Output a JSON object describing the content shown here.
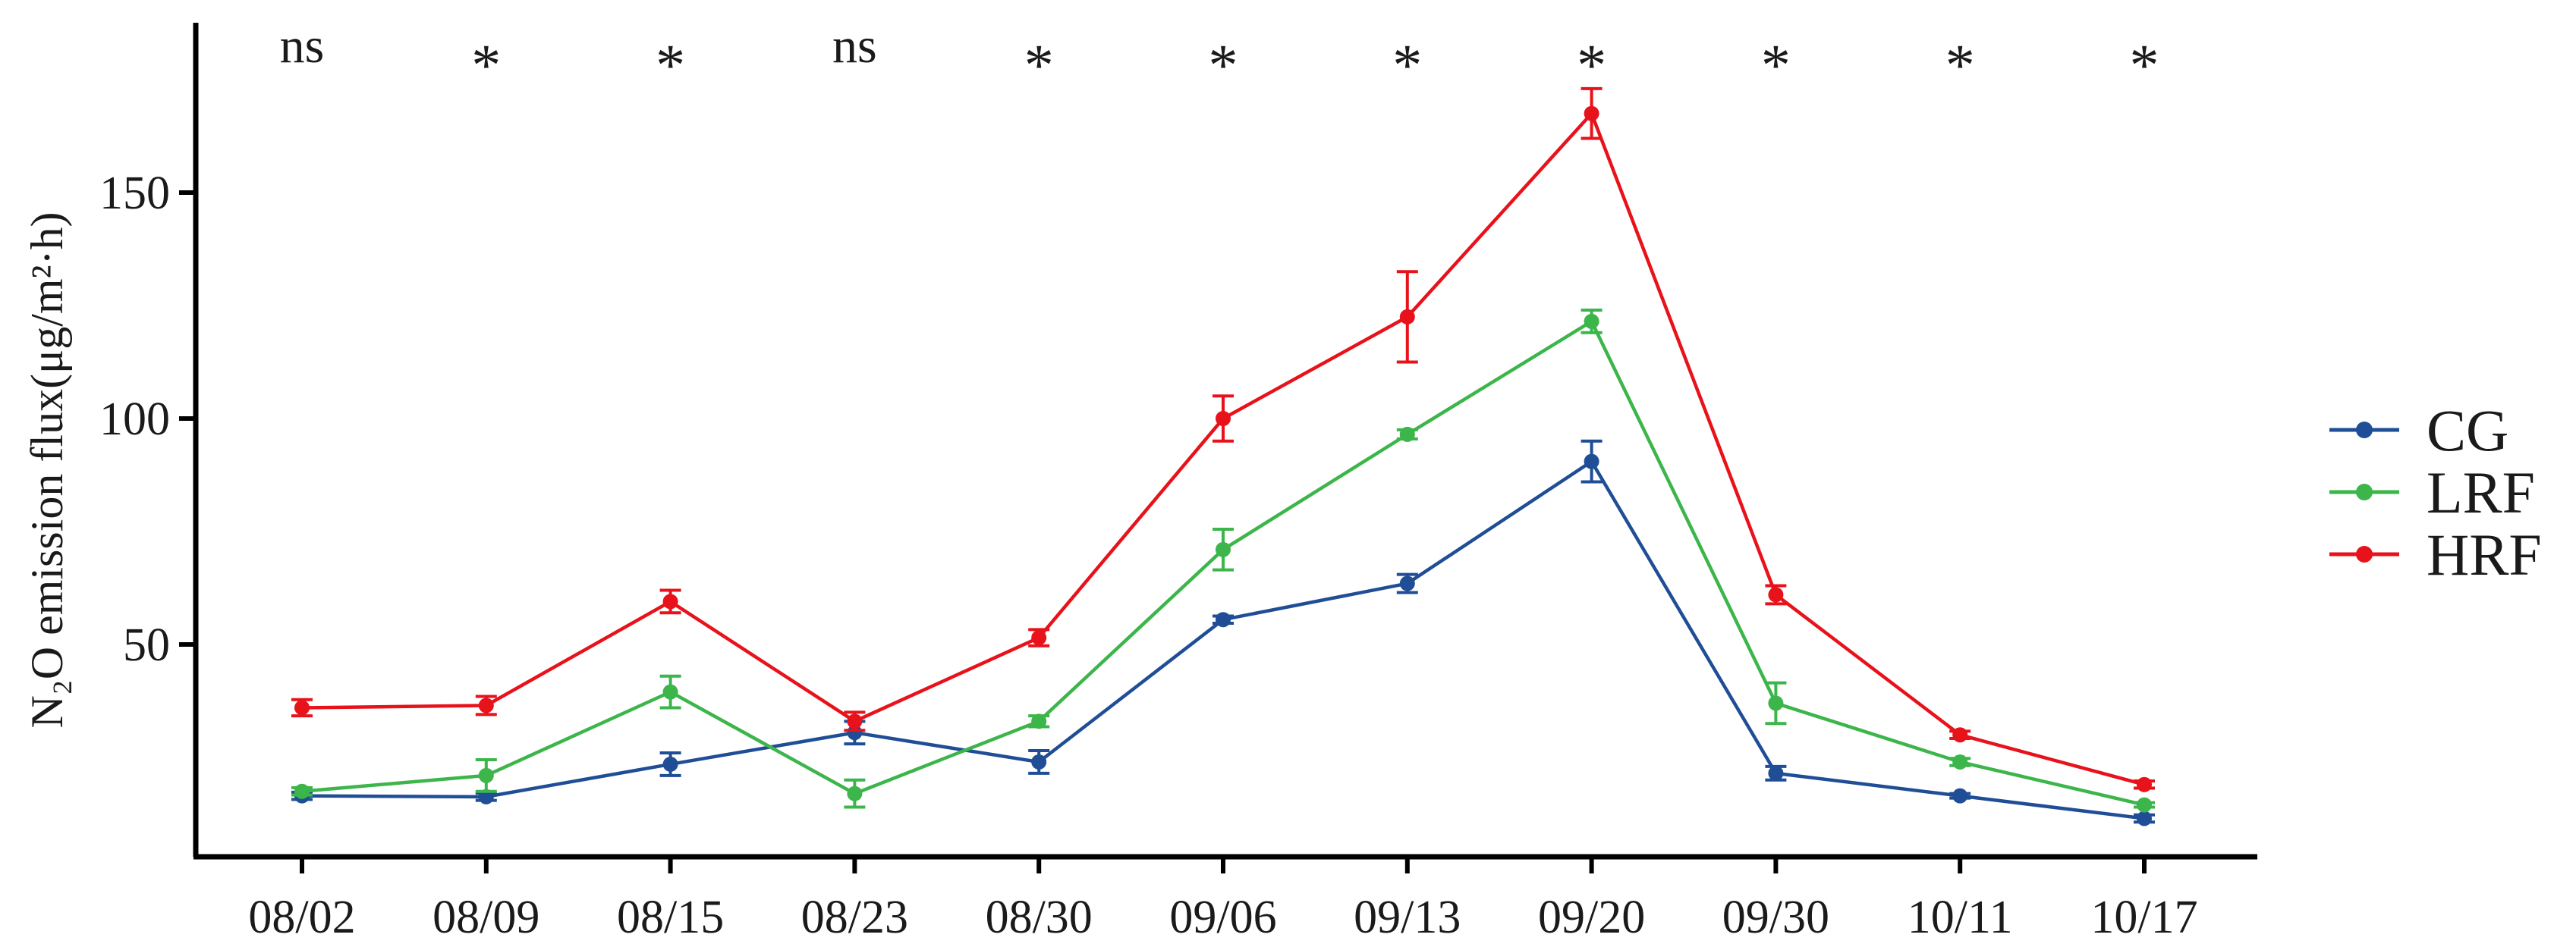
{
  "chart_data": {
    "type": "line",
    "title": "",
    "xlabel": "",
    "ylabel": "N₂O emission flux(μg/m²·h)",
    "ylim": [
      5,
      180
    ],
    "yticks": [
      50,
      100,
      150
    ],
    "categories": [
      "08/02",
      "08/09",
      "08/15",
      "08/23",
      "08/30",
      "09/06",
      "09/13",
      "09/20",
      "09/30",
      "10/11",
      "10/17"
    ],
    "significance": [
      "ns",
      "*",
      "*",
      "ns",
      "*",
      "*",
      "*",
      "*",
      "*",
      "*",
      "*"
    ],
    "legend_position": "right",
    "grid": false,
    "series": [
      {
        "name": "CG",
        "color": "#1f4e96",
        "values": [
          16.5,
          16.3,
          23.5,
          30.5,
          24.0,
          55.5,
          63.5,
          90.5,
          21.5,
          16.5,
          11.5
        ],
        "errors": [
          0.8,
          0.8,
          2.5,
          2.5,
          2.5,
          0.8,
          2.0,
          4.5,
          1.5,
          0.5,
          0.8
        ]
      },
      {
        "name": "LRF",
        "color": "#3cb54a",
        "values": [
          17.5,
          21.0,
          39.5,
          17.0,
          33.0,
          71.0,
          96.5,
          121.5,
          37.0,
          24.0,
          14.5
        ],
        "errors": [
          0.8,
          3.5,
          3.5,
          3.0,
          1.2,
          4.5,
          1.0,
          2.5,
          4.5,
          0.8,
          0.5
        ]
      },
      {
        "name": "HRF",
        "color": "#e8121b",
        "values": [
          36.0,
          36.5,
          59.5,
          33.0,
          51.5,
          100.0,
          122.5,
          167.5,
          61.0,
          30.0,
          19.0
        ],
        "errors": [
          1.8,
          2.0,
          2.5,
          2.0,
          1.8,
          5.0,
          10.0,
          5.5,
          2.0,
          0.8,
          0.8
        ]
      }
    ]
  }
}
